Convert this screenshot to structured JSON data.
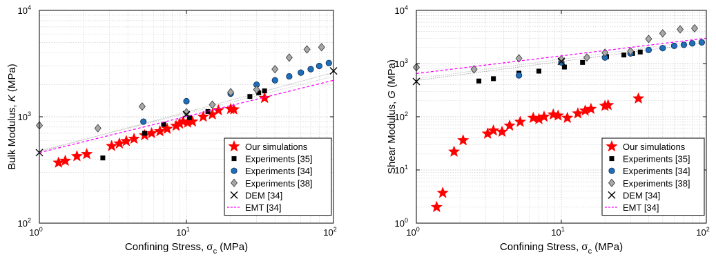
{
  "chart_data": [
    {
      "type": "scatter",
      "xscale": "log",
      "yscale": "log",
      "xlim": [
        1,
        100
      ],
      "ylim": [
        100,
        10000
      ],
      "xlabel": "Confining Stress, σ",
      "xlabel_sub": "c",
      "xlabel_unit": " (MPa)",
      "ylabel": "Bulk Modulus, ",
      "ylabel_italic": "K",
      "ylabel_unit": " (MPa)",
      "x_ticks": [
        {
          "value": 1,
          "mantissa": "10",
          "exp": "0"
        },
        {
          "value": 10,
          "mantissa": "10",
          "exp": "1"
        },
        {
          "value": 100,
          "mantissa": "10",
          "exp": "2"
        }
      ],
      "y_ticks": [
        {
          "value": 100,
          "mantissa": "10",
          "exp": "2"
        },
        {
          "value": 1000,
          "mantissa": "10",
          "exp": "3"
        },
        {
          "value": 10000,
          "mantissa": "10",
          "exp": "4"
        }
      ],
      "grid": true,
      "legend_position": "bottom-right",
      "series": [
        {
          "name": "Our simulations",
          "marker": "star",
          "color": "#ff0000",
          "x": [
            1.35,
            1.5,
            1.8,
            2.1,
            3.1,
            3.5,
            3.9,
            4.4,
            5.2,
            5.8,
            6.6,
            7.4,
            8.5,
            9.0,
            9.5,
            10.2,
            11.0,
            13.0,
            15.0,
            16.5,
            20.0,
            21.0,
            34.0
          ],
          "y": [
            370,
            385,
            425,
            445,
            530,
            560,
            590,
            620,
            670,
            700,
            730,
            770,
            820,
            860,
            900,
            880,
            900,
            1000,
            1050,
            1150,
            1180,
            1170,
            1500
          ]
        },
        {
          "name": "Experiments [35]",
          "marker": "square",
          "color": "#000000",
          "x": [
            2.7,
            5.2,
            7.0,
            10.5,
            14.0,
            27.0,
            31.0,
            34.0
          ],
          "y": [
            410,
            700,
            850,
            980,
            1120,
            1550,
            1680,
            1750
          ]
        },
        {
          "name": "Experiments [34]",
          "marker": "circle",
          "color": "#1f6fb8",
          "x": [
            5.1,
            10.0,
            20.0,
            30.0,
            40.0,
            50.0,
            60.0,
            70.0,
            80.0,
            93.0
          ],
          "y": [
            900,
            1400,
            1650,
            2000,
            2200,
            2400,
            2600,
            2800,
            3000,
            3200
          ]
        },
        {
          "name": "Experiments [38]",
          "marker": "diamond",
          "color": "#a8a8a8",
          "x": [
            1.0,
            2.5,
            5.0,
            10.0,
            15.0,
            20.0,
            30.0,
            40.0,
            50.0,
            66.0,
            83.0
          ],
          "y": [
            830,
            780,
            1250,
            1100,
            1300,
            1700,
            1800,
            2800,
            3600,
            4300,
            4500
          ]
        },
        {
          "name": "DEM [34]",
          "marker": "x",
          "color": "#000000",
          "x": [
            1.0,
            10.0,
            100.0
          ],
          "y": [
            460,
            1050,
            2700
          ]
        },
        {
          "name": "EMT [34]",
          "marker": "dashed-line",
          "color": "#ff00ff",
          "x": [
            1.0,
            100.0
          ],
          "y": [
            460,
            2200
          ]
        }
      ]
    },
    {
      "type": "scatter",
      "xscale": "log",
      "yscale": "log",
      "xlim": [
        1,
        100
      ],
      "ylim": [
        1,
        10000
      ],
      "xlabel": "Confining Stress, σ",
      "xlabel_sub": "c",
      "xlabel_unit": " (MPa)",
      "ylabel": "Shear Modulus, ",
      "ylabel_italic": "G",
      "ylabel_unit": " (MPa)",
      "x_ticks": [
        {
          "value": 1,
          "mantissa": "10",
          "exp": "0"
        },
        {
          "value": 10,
          "mantissa": "10",
          "exp": "1"
        },
        {
          "value": 100,
          "mantissa": "10",
          "exp": "2"
        }
      ],
      "y_ticks": [
        {
          "value": 1,
          "mantissa": "10",
          "exp": "0"
        },
        {
          "value": 10,
          "mantissa": "10",
          "exp": "1"
        },
        {
          "value": 100,
          "mantissa": "10",
          "exp": "2"
        },
        {
          "value": 1000,
          "mantissa": "10",
          "exp": "3"
        },
        {
          "value": 10000,
          "mantissa": "10",
          "exp": "4"
        }
      ],
      "grid": true,
      "legend_position": "bottom-right",
      "series": [
        {
          "name": "Our simulations",
          "marker": "star",
          "color": "#ff0000",
          "x": [
            1.38,
            1.52,
            1.82,
            2.1,
            3.1,
            3.4,
            3.9,
            4.4,
            5.2,
            6.4,
            7.0,
            7.6,
            8.8,
            9.5,
            11.0,
            13.0,
            14.6,
            16.0,
            20.0,
            21.0,
            34.0
          ],
          "y": [
            2.0,
            3.7,
            22,
            36,
            48,
            55,
            52,
            68,
            80,
            95,
            90,
            100,
            110,
            105,
            95,
            115,
            130,
            140,
            160,
            165,
            220
          ]
        },
        {
          "name": "Experiments [35]",
          "marker": "square",
          "color": "#000000",
          "x": [
            2.7,
            3.4,
            5.1,
            7.0,
            10.5,
            14.0,
            20.5,
            27.0,
            31.0,
            35.0
          ],
          "y": [
            470,
            520,
            660,
            720,
            860,
            1050,
            1350,
            1450,
            1550,
            1650
          ]
        },
        {
          "name": "Experiments [34]",
          "marker": "circle",
          "color": "#1f6fb8",
          "x": [
            5.1,
            10.0,
            20.0,
            30.0,
            40.0,
            50.0,
            60.0,
            70.0,
            80.0,
            93.0
          ],
          "y": [
            600,
            1050,
            1300,
            1550,
            1800,
            1950,
            2150,
            2250,
            2400,
            2500
          ]
        },
        {
          "name": "Experiments [38]",
          "marker": "diamond",
          "color": "#a8a8a8",
          "x": [
            1.0,
            2.5,
            5.1,
            10.0,
            15.0,
            20.0,
            30.0,
            40.0,
            50.0,
            66.0,
            83.0
          ],
          "y": [
            850,
            780,
            1250,
            1200,
            1300,
            1600,
            1700,
            2900,
            3700,
            4400,
            4600
          ]
        },
        {
          "name": "DEM [34]",
          "marker": "x",
          "color": "#000000",
          "x": [
            1.0,
            10.0
          ],
          "y": [
            460,
            1100
          ]
        },
        {
          "name": "EMT [34]",
          "marker": "dashed-line",
          "color": "#ff00ff",
          "x": [
            1.0,
            100.0
          ],
          "y": [
            650,
            3000
          ]
        }
      ]
    }
  ]
}
